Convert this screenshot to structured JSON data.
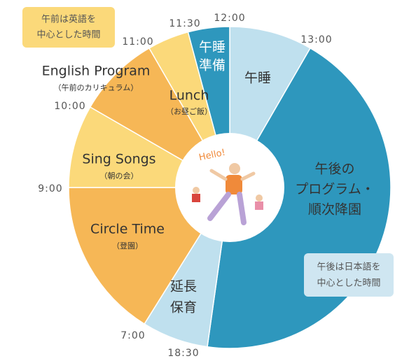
{
  "callouts": [
    {
      "lines": [
        "午前は英語を",
        "中心とした時間"
      ]
    },
    {
      "lines": [
        "午後は日本語を",
        "中心とした時間"
      ]
    }
  ],
  "segments": [
    {
      "lines": [
        "午睡"
      ]
    },
    {
      "lines": [
        "午後の",
        "プログラム・",
        "順次降園"
      ]
    },
    {
      "lines": [
        "延長",
        "保育"
      ]
    },
    {
      "lines": [
        "Circle Time",
        "（登園）"
      ]
    },
    {
      "lines": [
        "Sing Songs",
        "（朝の会）"
      ]
    },
    {
      "lines": [
        "English Program",
        "（午前のカリキュラム）"
      ]
    },
    {
      "lines": [
        "Lunch",
        "（お昼ご飯）"
      ]
    },
    {
      "lines": [
        "午睡",
        "準備"
      ]
    }
  ],
  "time_labels": [
    "12:00",
    "13:00",
    "18:30",
    "7:00",
    "9:00",
    "10:00",
    "11:00",
    "11:30"
  ],
  "center_text": "Hello!"
}
